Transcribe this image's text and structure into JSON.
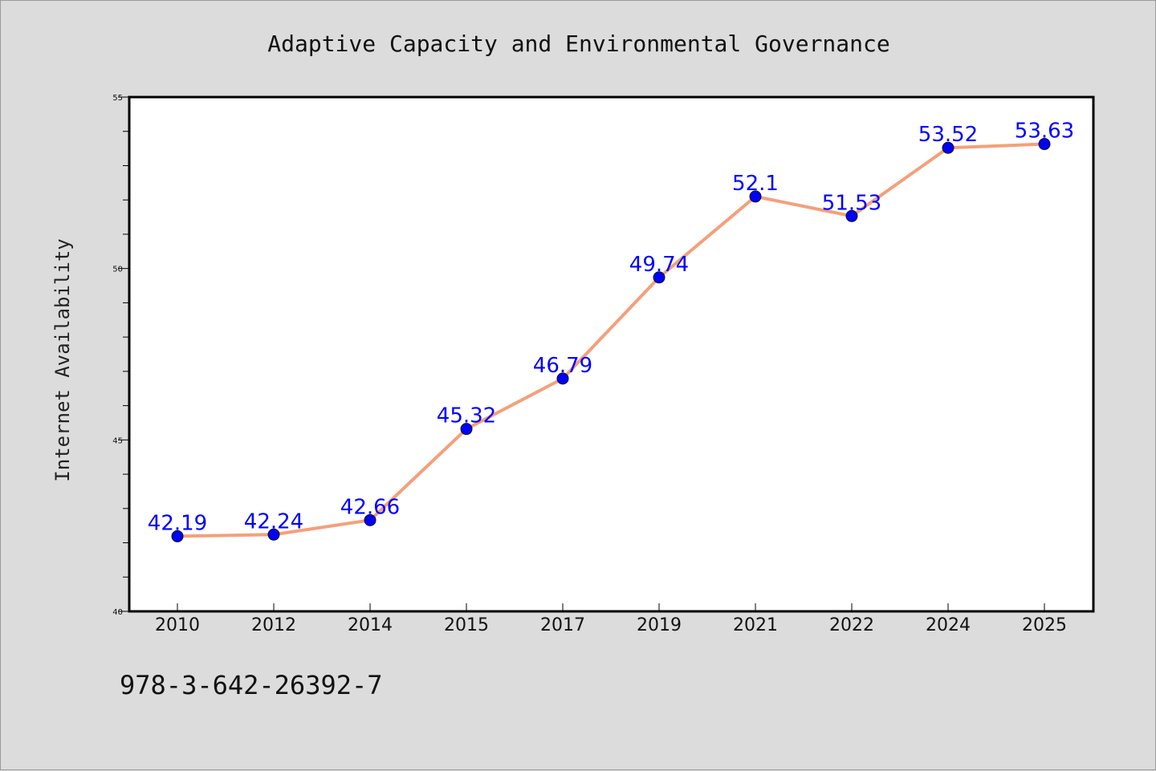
{
  "chart_data": {
    "type": "line",
    "title": "Adaptive Capacity and Environmental Governance",
    "xlabel": "",
    "ylabel": "Internet Availability",
    "categories": [
      "2010",
      "2012",
      "2014",
      "2015",
      "2017",
      "2019",
      "2021",
      "2022",
      "2024",
      "2025"
    ],
    "series": [
      {
        "values": [
          42.19,
          42.24,
          42.66,
          45.32,
          46.79,
          49.74,
          52.1,
          51.53,
          53.52,
          53.63
        ],
        "line_color": "#f4a07a",
        "marker_color": "#0000ff",
        "label_color": "#0000ff"
      }
    ],
    "data_labels": [
      "42.19",
      "42.24",
      "42.66",
      "45.32",
      "46.79",
      "49.74",
      "52.1",
      "51.53",
      "53.52",
      "53.63"
    ],
    "ylim": [
      40,
      55
    ],
    "y_tick_labels": [
      "40",
      "45",
      "50",
      "55"
    ],
    "grid": false,
    "legend": "none"
  },
  "footer": {
    "code": "978-3-642-26392-7"
  }
}
